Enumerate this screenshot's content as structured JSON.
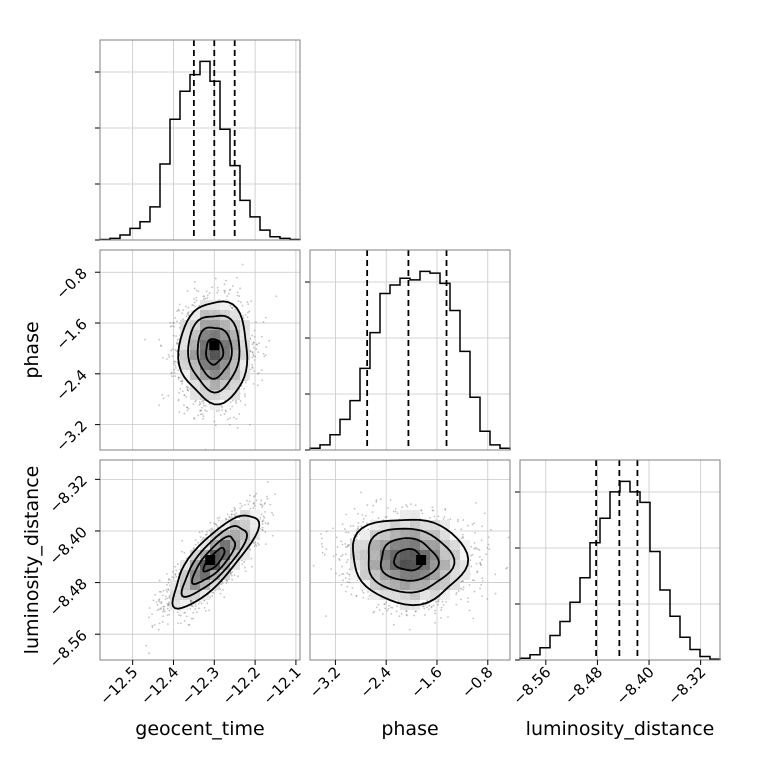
{
  "chart_data": {
    "type": "corner",
    "parameters": [
      "geocent_time",
      "phase",
      "luminosity_distance"
    ],
    "axes": {
      "geocent_time": {
        "label": "geocent_time",
        "range": [
          -12.58,
          -12.09
        ],
        "ticks": [
          -12.5,
          -12.4,
          -12.3,
          -12.2,
          -12.1
        ],
        "tick_labels": [
          "−12.5",
          "−12.4",
          "−12.3",
          "−12.2",
          "−12.1"
        ]
      },
      "phase": {
        "label": "phase",
        "range": [
          -3.6,
          -0.45
        ],
        "ticks": [
          -3.2,
          -2.4,
          -1.6,
          -0.8
        ],
        "tick_labels": [
          "−3.2",
          "−2.4",
          "−1.6",
          "−0.8"
        ]
      },
      "luminosity_distance": {
        "label": "luminosity_distance",
        "range": [
          -8.6,
          -8.29
        ],
        "ticks": [
          -8.56,
          -8.48,
          -8.4,
          -8.32
        ],
        "tick_labels": [
          "−8.56",
          "−8.48",
          "−8.40",
          "−8.32"
        ]
      }
    },
    "histograms": [
      {
        "parameter": "geocent_time",
        "bin_edges": [
          -12.58,
          -12.5555,
          -12.531,
          -12.5065,
          -12.482,
          -12.4575,
          -12.433,
          -12.4085,
          -12.384,
          -12.3595,
          -12.335,
          -12.3105,
          -12.286,
          -12.2615,
          -12.237,
          -12.2125,
          -12.188,
          -12.1635,
          -12.139,
          -12.1145,
          -12.09
        ],
        "counts": [
          0.3,
          1,
          3,
          7,
          11,
          20,
          46,
          73,
          90,
          100,
          108,
          96,
          67,
          45,
          24,
          14,
          6,
          2,
          1,
          0.3
        ],
        "quantiles": [
          -12.35,
          -12.3,
          -12.25
        ]
      },
      {
        "parameter": "phase",
        "bin_edges": [
          -3.6,
          -3.4425,
          -3.285,
          -3.1275,
          -2.97,
          -2.8125,
          -2.655,
          -2.4975,
          -2.34,
          -2.1825,
          -2.025,
          -1.8675,
          -1.71,
          -1.5525,
          -1.395,
          -1.2375,
          -1.08,
          -0.9225,
          -0.765,
          -0.6075,
          -0.45
        ],
        "counts": [
          1,
          3,
          9,
          18,
          29,
          48,
          69,
          92,
          97,
          101,
          100,
          105,
          104,
          98,
          82,
          58,
          31,
          11,
          3,
          1
        ],
        "quantiles": [
          -2.7,
          -2.05,
          -1.45
        ]
      },
      {
        "parameter": "luminosity_distance",
        "bin_edges": [
          -8.6,
          -8.5845,
          -8.569,
          -8.5535,
          -8.538,
          -8.5225,
          -8.507,
          -8.4915,
          -8.476,
          -8.4605,
          -8.445,
          -8.4295,
          -8.414,
          -8.3985,
          -8.383,
          -8.3675,
          -8.352,
          -8.3365,
          -8.321,
          -8.3055,
          -8.29
        ],
        "counts": [
          1,
          3,
          7,
          14,
          22,
          33,
          47,
          67,
          81,
          96,
          102,
          96,
          90,
          62,
          40,
          25,
          13,
          6,
          2,
          0.5
        ],
        "quantiles": [
          -8.482,
          -8.446,
          -8.418
        ]
      }
    ],
    "scatter_2d": [
      {
        "x": "geocent_time",
        "y": "phase",
        "mean": [
          -12.3,
          -2.05
        ],
        "sd": [
          0.042,
          0.4
        ],
        "rho": 0.0,
        "n_points": 2500,
        "contour_levels": [
          0.39,
          0.86,
          1.0
        ],
        "mode_marker": [
          -12.3,
          -1.95
        ]
      },
      {
        "x": "geocent_time",
        "y": "luminosity_distance",
        "mean": [
          -12.3,
          -8.445
        ],
        "sd": [
          0.052,
          0.036
        ],
        "rho": 0.8,
        "n_points": 2500,
        "contour_levels": [
          0.39,
          0.86,
          1.0
        ],
        "mode_marker": [
          -12.31,
          -8.445
        ]
      },
      {
        "x": "phase",
        "y": "luminosity_distance",
        "mean": [
          -2.05,
          -8.445
        ],
        "sd": [
          0.45,
          0.033
        ],
        "rho": -0.05,
        "n_points": 2500,
        "contour_levels": [
          0.39,
          0.86,
          1.0
        ],
        "mode_marker": [
          -1.85,
          -8.445
        ]
      }
    ],
    "grid": true,
    "colors": {
      "points": "#7a7a7a",
      "density": "#000000",
      "lines": "#000000",
      "grid": "#c8c8c8",
      "frame": "#808080"
    }
  }
}
